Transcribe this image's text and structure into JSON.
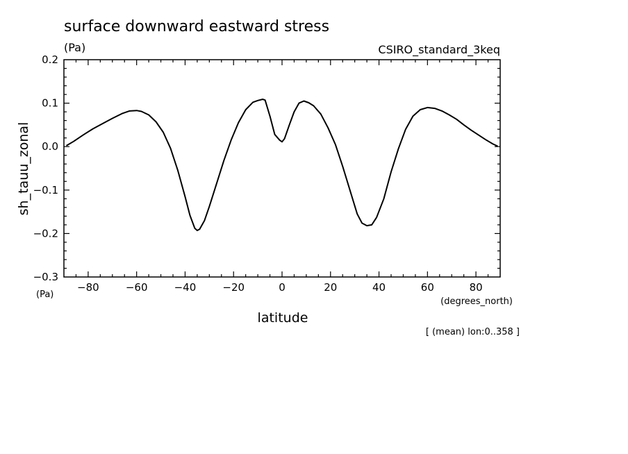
{
  "chart_data": {
    "type": "line",
    "title": "surface downward eastward stress",
    "title_units": "(Pa)",
    "model": "CSIRO_standard_3keq",
    "ylabel": "sh_tauu_zonal",
    "y_units": "(Pa)",
    "xlabel": "latitude",
    "x_units": "(degrees_north)",
    "note": "[ (mean) lon:0..358 ]",
    "xlim": [
      -90,
      90
    ],
    "ylim": [
      -0.3,
      0.2
    ],
    "xticks": [
      -80,
      -60,
      -40,
      -20,
      0,
      20,
      40,
      60,
      80
    ],
    "xtick_labels": [
      "−80",
      "−60",
      "−40",
      "−20",
      "0",
      "20",
      "40",
      "60",
      "80"
    ],
    "yticks": [
      0.2,
      0.1,
      0.0,
      -0.1,
      -0.2,
      -0.3
    ],
    "ytick_labels": [
      "0.2",
      "0.1",
      "0.0",
      "−0.1",
      "−0.2",
      "−0.3"
    ],
    "grid": false,
    "series": [
      {
        "color": "#000000",
        "x": [
          -89,
          -86,
          -82,
          -78,
          -74,
          -70,
          -66,
          -63,
          -60,
          -58,
          -55,
          -52,
          -49,
          -46,
          -43,
          -40,
          -38,
          -36,
          -35,
          -34,
          -32,
          -30,
          -27,
          -24,
          -21,
          -18,
          -15,
          -12,
          -10,
          -8,
          -7,
          -5,
          -3,
          -1,
          0,
          1,
          3,
          5,
          7,
          9,
          11,
          13,
          16,
          19,
          22,
          25,
          28,
          31,
          33,
          35,
          37,
          39,
          42,
          45,
          48,
          51,
          54,
          57,
          60,
          63,
          66,
          69,
          72,
          75,
          78,
          81,
          84,
          87,
          89
        ],
        "y": [
          0.002,
          0.012,
          0.027,
          0.041,
          0.053,
          0.065,
          0.076,
          0.082,
          0.083,
          0.081,
          0.073,
          0.057,
          0.033,
          -0.004,
          -0.055,
          -0.115,
          -0.158,
          -0.188,
          -0.193,
          -0.19,
          -0.17,
          -0.138,
          -0.085,
          -0.032,
          0.015,
          0.055,
          0.085,
          0.102,
          0.106,
          0.109,
          0.107,
          0.07,
          0.028,
          0.015,
          0.011,
          0.018,
          0.05,
          0.08,
          0.1,
          0.105,
          0.101,
          0.094,
          0.075,
          0.043,
          0.005,
          -0.045,
          -0.1,
          -0.155,
          -0.176,
          -0.182,
          -0.18,
          -0.163,
          -0.12,
          -0.058,
          -0.005,
          0.04,
          0.07,
          0.085,
          0.09,
          0.088,
          0.082,
          0.073,
          0.063,
          0.05,
          0.038,
          0.027,
          0.016,
          0.006,
          0.001
        ]
      }
    ]
  }
}
